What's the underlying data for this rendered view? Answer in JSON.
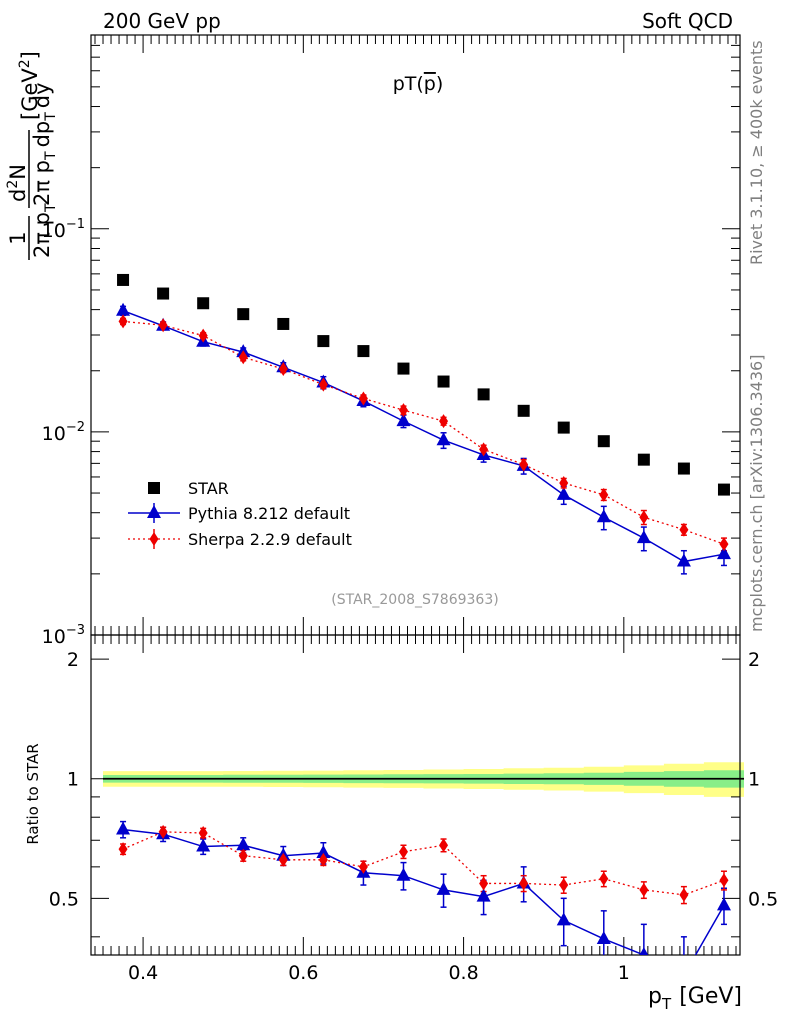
{
  "header": {
    "left": "200 GeV pp",
    "right": "Soft QCD",
    "side_top": "Rivet 3.1.10, ≥ 400k events",
    "side_bottom": "mcplots.cern.ch [arXiv:1306.3436]"
  },
  "plot_label": "pT(",
  "plot_label_particle": "p",
  "plot_label_close": ")",
  "analysis_id": "(STAR_2008_S7869363)",
  "ylabel_parts": {
    "one": "1",
    "two_pi": "2π p",
    "sub_T": "T",
    "d2N": "d",
    "sup2": "2",
    "N": "N",
    "dp": "dp",
    "dy": "dy",
    "unit": "[GeV",
    "unit_sup": "2",
    "unit_close": "]"
  },
  "xlabel": "p",
  "xlabel_sub": "T",
  "xlabel_unit": "[GeV]",
  "ratio_ylabel": "Ratio to STAR",
  "main_yticks": [
    {
      "value": 0.1,
      "base": "10",
      "exp": "−1"
    },
    {
      "value": 0.01,
      "base": "10",
      "exp": "−2"
    },
    {
      "value": 0.001,
      "base": "10",
      "exp": "−3"
    }
  ],
  "ratio_yticks": [
    "0.5",
    "1",
    "2"
  ],
  "xticks": [
    "0.4",
    "0.6",
    "0.8",
    "1"
  ],
  "colors": {
    "star": "#000000",
    "pythia": "#0000cc",
    "sherpa": "#ee0000",
    "band_outer": "#ffff88",
    "band_inner": "#88ee88"
  },
  "chart_data": {
    "type": "scatter",
    "xlim": [
      0.335,
      1.145
    ],
    "ylim": [
      0.001,
      0.9
    ],
    "yscale": "log",
    "ratio_ylim": [
      0.36,
      2.3
    ],
    "legend_position": "bottom-left",
    "x": [
      0.375,
      0.425,
      0.475,
      0.525,
      0.575,
      0.625,
      0.675,
      0.725,
      0.775,
      0.825,
      0.875,
      0.925,
      0.975,
      1.025,
      1.075,
      1.125
    ],
    "series": [
      {
        "name": "STAR",
        "values": [
          0.056,
          0.048,
          0.043,
          0.038,
          0.034,
          0.028,
          0.025,
          0.0205,
          0.0177,
          0.0153,
          0.0127,
          0.0105,
          0.009,
          0.0073,
          0.0066,
          0.0052
        ]
      },
      {
        "name": "Pythia 8.212 default",
        "values": [
          0.0395,
          0.0333,
          0.0278,
          0.0247,
          0.0208,
          0.0175,
          0.0142,
          0.0113,
          0.0091,
          0.0077,
          0.0068,
          0.0049,
          0.0038,
          0.003,
          0.0023,
          0.0025
        ],
        "errors": [
          0.002,
          0.0015,
          0.0013,
          0.0012,
          0.0011,
          0.0012,
          0.0009,
          0.0008,
          0.0008,
          0.0006,
          0.0006,
          0.0005,
          0.0005,
          0.0004,
          0.0003,
          0.0003
        ],
        "ratio": [
          0.745,
          0.725,
          0.675,
          0.68,
          0.64,
          0.65,
          0.58,
          0.57,
          0.525,
          0.505,
          0.545,
          0.44,
          0.395,
          0.36,
          0.32,
          0.48
        ],
        "ratio_errors": [
          0.035,
          0.03,
          0.03,
          0.03,
          0.035,
          0.04,
          0.04,
          0.045,
          0.05,
          0.05,
          0.055,
          0.06,
          0.07,
          0.07,
          0.08,
          0.05
        ]
      },
      {
        "name": "Sherpa 2.2.9 default",
        "values": [
          0.035,
          0.0335,
          0.0298,
          0.0233,
          0.0204,
          0.0171,
          0.0146,
          0.0128,
          0.0113,
          0.0082,
          0.0069,
          0.0056,
          0.0049,
          0.0038,
          0.0033,
          0.0028
        ],
        "errors": [
          0.0012,
          0.0012,
          0.001,
          0.0009,
          0.0008,
          0.0007,
          0.0006,
          0.0006,
          0.0005,
          0.0004,
          0.0004,
          0.0003,
          0.0003,
          0.0003,
          0.0002,
          0.0002
        ],
        "ratio": [
          0.665,
          0.735,
          0.73,
          0.64,
          0.625,
          0.625,
          0.6,
          0.655,
          0.68,
          0.545,
          0.545,
          0.54,
          0.56,
          0.525,
          0.51,
          0.555
        ],
        "ratio_errors": [
          0.02,
          0.02,
          0.02,
          0.02,
          0.02,
          0.02,
          0.02,
          0.025,
          0.025,
          0.025,
          0.025,
          0.025,
          0.025,
          0.025,
          0.025,
          0.03
        ]
      }
    ],
    "ratio_band_inner": [
      0.022,
      0.022,
      0.022,
      0.023,
      0.023,
      0.024,
      0.025,
      0.026,
      0.027,
      0.028,
      0.03,
      0.032,
      0.035,
      0.04,
      0.045,
      0.05
    ],
    "ratio_band_outer": [
      0.045,
      0.045,
      0.045,
      0.046,
      0.047,
      0.048,
      0.05,
      0.052,
      0.055,
      0.058,
      0.062,
      0.066,
      0.072,
      0.08,
      0.09,
      0.1
    ]
  }
}
